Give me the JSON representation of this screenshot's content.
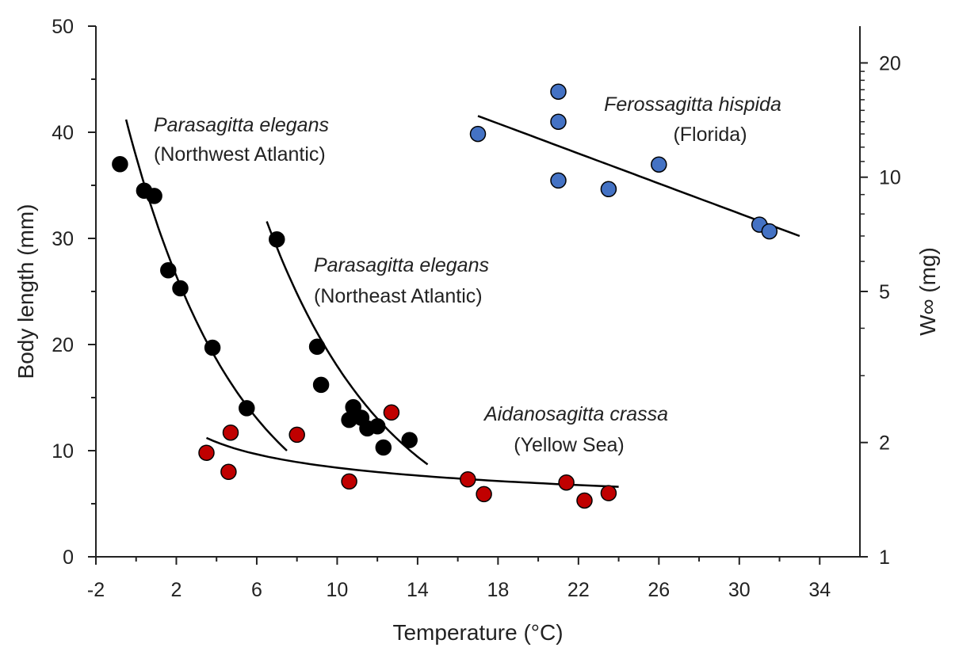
{
  "chart_data": {
    "type": "scatter",
    "title": "",
    "xlabel": "Temperature (°C)",
    "ylabel": "Body length (mm)",
    "y2label": "W∞ (mg)",
    "xlim": [
      -2,
      36
    ],
    "ylim": [
      0,
      50
    ],
    "y2lim": [
      1,
      25
    ],
    "y2_scale": "log",
    "xticks": [
      -2,
      2,
      6,
      10,
      14,
      18,
      22,
      26,
      30,
      34
    ],
    "xticks_minor": [
      0,
      4,
      8,
      12,
      16,
      20,
      24,
      28,
      32
    ],
    "yticks": [
      0,
      10,
      20,
      30,
      40,
      50
    ],
    "yticks_minor": [
      5,
      15,
      25,
      35,
      45
    ],
    "y2ticks": [
      1,
      2,
      5,
      10,
      20
    ],
    "grid": false,
    "legend": "none",
    "series": [
      {
        "name": "Parasagitta elegans (Northwest Atlantic)",
        "axis": "left",
        "color": "#000000",
        "points": [
          [
            -0.8,
            37.0
          ],
          [
            0.4,
            34.5
          ],
          [
            0.9,
            34.0
          ],
          [
            1.6,
            27.0
          ],
          [
            2.2,
            25.3
          ],
          [
            3.8,
            19.7
          ],
          [
            5.5,
            14.0
          ]
        ],
        "fit": {
          "form": "exponential",
          "from": [
            -0.5,
            41.2
          ],
          "to": [
            7.5,
            10.0
          ]
        }
      },
      {
        "name": "Parasagitta elegans (Northeast Atlantic)",
        "axis": "left",
        "color": "#000000",
        "points": [
          [
            7.0,
            29.9
          ],
          [
            9.0,
            19.8
          ],
          [
            9.2,
            16.2
          ],
          [
            10.6,
            12.9
          ],
          [
            10.8,
            14.1
          ],
          [
            11.2,
            13.1
          ],
          [
            11.5,
            12.1
          ],
          [
            12.0,
            12.3
          ],
          [
            12.3,
            10.3
          ],
          [
            13.6,
            11.0
          ]
        ],
        "fit": {
          "form": "exponential",
          "from": [
            6.5,
            31.6
          ],
          "to": [
            14.5,
            8.7
          ]
        }
      },
      {
        "name": "Aidanosagitta crassa (Yellow Sea)",
        "axis": "left",
        "color": "#c00000",
        "points": [
          [
            3.5,
            9.8
          ],
          [
            4.6,
            8.0
          ],
          [
            4.7,
            11.7
          ],
          [
            8.0,
            11.5
          ],
          [
            10.6,
            7.1
          ],
          [
            12.7,
            13.6
          ],
          [
            16.5,
            7.3
          ],
          [
            17.3,
            5.9
          ],
          [
            21.4,
            7.0
          ],
          [
            22.3,
            5.3
          ],
          [
            23.5,
            6.0
          ]
        ],
        "fit": {
          "form": "power",
          "from": [
            3.5,
            11.2
          ],
          "to": [
            24.0,
            6.6
          ]
        }
      },
      {
        "name": "Ferossagitta hispida (Florida)",
        "axis": "right",
        "color": "#4472c4",
        "points": [
          [
            17.0,
            13.0
          ],
          [
            21.0,
            16.8
          ],
          [
            21.0,
            14.0
          ],
          [
            21.0,
            9.8
          ],
          [
            23.5,
            9.3
          ],
          [
            26.0,
            10.8
          ],
          [
            31.0,
            7.5
          ],
          [
            31.5,
            7.2
          ]
        ],
        "fit": {
          "form": "linear",
          "from": [
            17.0,
            14.5
          ],
          "to": [
            33.0,
            7.0
          ]
        }
      }
    ],
    "annotations": [
      {
        "title": "Parasagitta elegans",
        "sub": "(Northwest Atlantic)"
      },
      {
        "title": "Parasagitta elegans",
        "sub": "(Northeast Atlantic)"
      },
      {
        "title": "Aidanosagitta crassa",
        "sub": "(Yellow Sea)"
      },
      {
        "title": "Ferossagitta hispida",
        "sub": "(Florida)"
      }
    ]
  }
}
